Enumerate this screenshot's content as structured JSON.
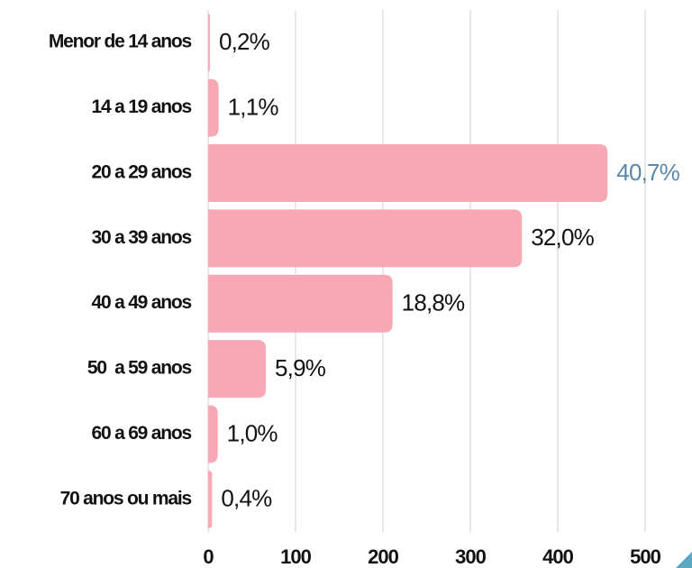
{
  "chart_data": {
    "type": "bar",
    "orientation": "horizontal",
    "categories": [
      "Menor de 14 anos",
      "14 a 19 anos",
      "20 a 29 anos",
      "30 a 39 anos",
      "40 a 49 anos",
      "50  a 59 anos",
      "60 a 69 anos",
      "70 anos ou mais"
    ],
    "values": [
      2,
      12,
      457,
      359,
      211,
      66,
      11,
      4.5
    ],
    "value_labels": [
      "0,2%",
      "1,1%",
      "40,7%",
      "32,0%",
      "18,8%",
      "5,9%",
      "1,0%",
      "0,4%"
    ],
    "value_label_colors": [
      "#111111",
      "#111111",
      "#5b86a8",
      "#111111",
      "#111111",
      "#111111",
      "#111111",
      "#111111"
    ],
    "color": "#f8a8b5",
    "xlim": [
      0,
      545
    ],
    "xticks": [
      0,
      100,
      200,
      300,
      400,
      500
    ],
    "grid": true
  }
}
